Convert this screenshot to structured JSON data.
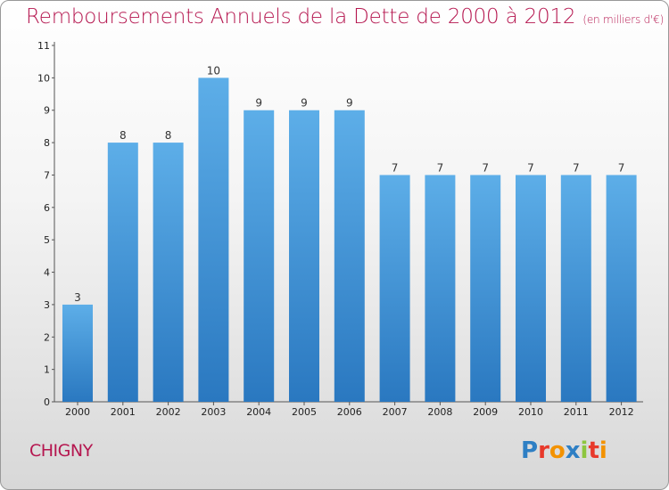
{
  "header": {
    "title": "Remboursements Annuels de la Dette de 2000 à 2012",
    "subtitle": "(en milliers d'€)"
  },
  "footer": {
    "commune": "CHIGNY",
    "logo": "Proxiti"
  },
  "colors": {
    "title": "#b5164f",
    "bar_top": "#5daee8",
    "bar_bottom": "#2a78c0",
    "logo_letters": [
      "#2e7fc4",
      "#e8392b",
      "#f39200",
      "#2e7fc4",
      "#8dc63f",
      "#e8392b",
      "#f39200"
    ]
  },
  "chart_data": {
    "type": "bar",
    "categories": [
      "2000",
      "2001",
      "2002",
      "2003",
      "2004",
      "2005",
      "2006",
      "2007",
      "2008",
      "2009",
      "2010",
      "2011",
      "2012"
    ],
    "values": [
      3,
      8,
      8,
      10,
      9,
      9,
      9,
      7,
      7,
      7,
      7,
      7,
      7
    ],
    "data_labels": [
      "3",
      "8",
      "8",
      "10",
      "9",
      "9",
      "9",
      "7",
      "7",
      "7",
      "7",
      "7",
      "7"
    ],
    "title": "Remboursements Annuels de la Dette de 2000 à 2012",
    "ylim": [
      0,
      11
    ],
    "yticks": [
      "0",
      "1",
      "2",
      "3",
      "4",
      "5",
      "6",
      "7",
      "8",
      "9",
      "10",
      "11"
    ],
    "grid": false
  }
}
